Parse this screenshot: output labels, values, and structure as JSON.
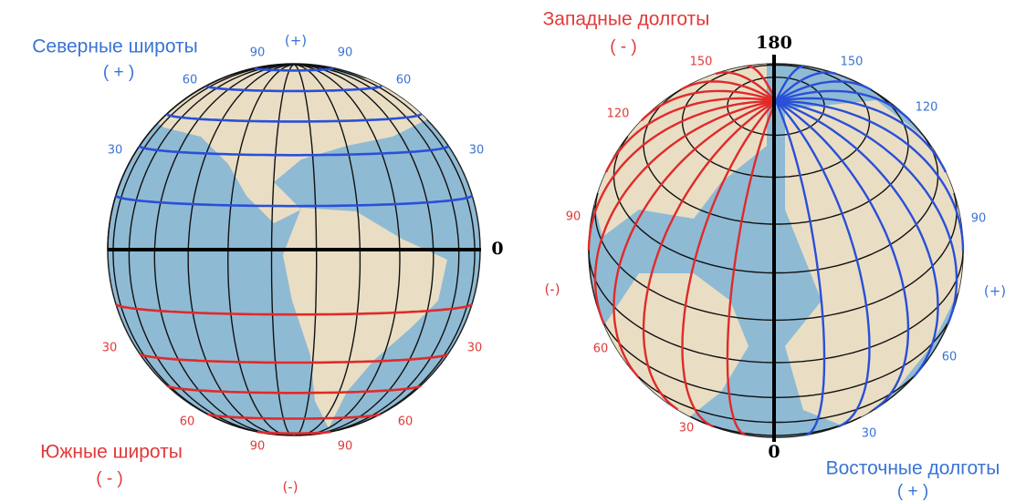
{
  "left_globe": {
    "title": "Северные широты",
    "title_sign": "( + )",
    "top_sign": "(+)",
    "equator_label": "0",
    "north_labels": [
      "90",
      "90",
      "60",
      "60",
      "30",
      "30"
    ],
    "south_labels": [
      "30",
      "30",
      "60",
      "60",
      "90",
      "90"
    ],
    "bottom_title": "Южные широты",
    "bottom_title_sign": "( - )",
    "bottom_sign": "(-)"
  },
  "right_globe": {
    "title": "Западные долготы",
    "title_sign": "( - )",
    "top_label": "180",
    "bottom_label": "0",
    "west_labels": [
      "150",
      "120",
      "90",
      "60",
      "30"
    ],
    "west_sign": "(-)",
    "east_labels": [
      "150",
      "120",
      "90",
      "60",
      "30"
    ],
    "east_sign": "(+)",
    "bottom_title": "Восточные долготы",
    "bottom_title_sign": "( + )"
  }
}
